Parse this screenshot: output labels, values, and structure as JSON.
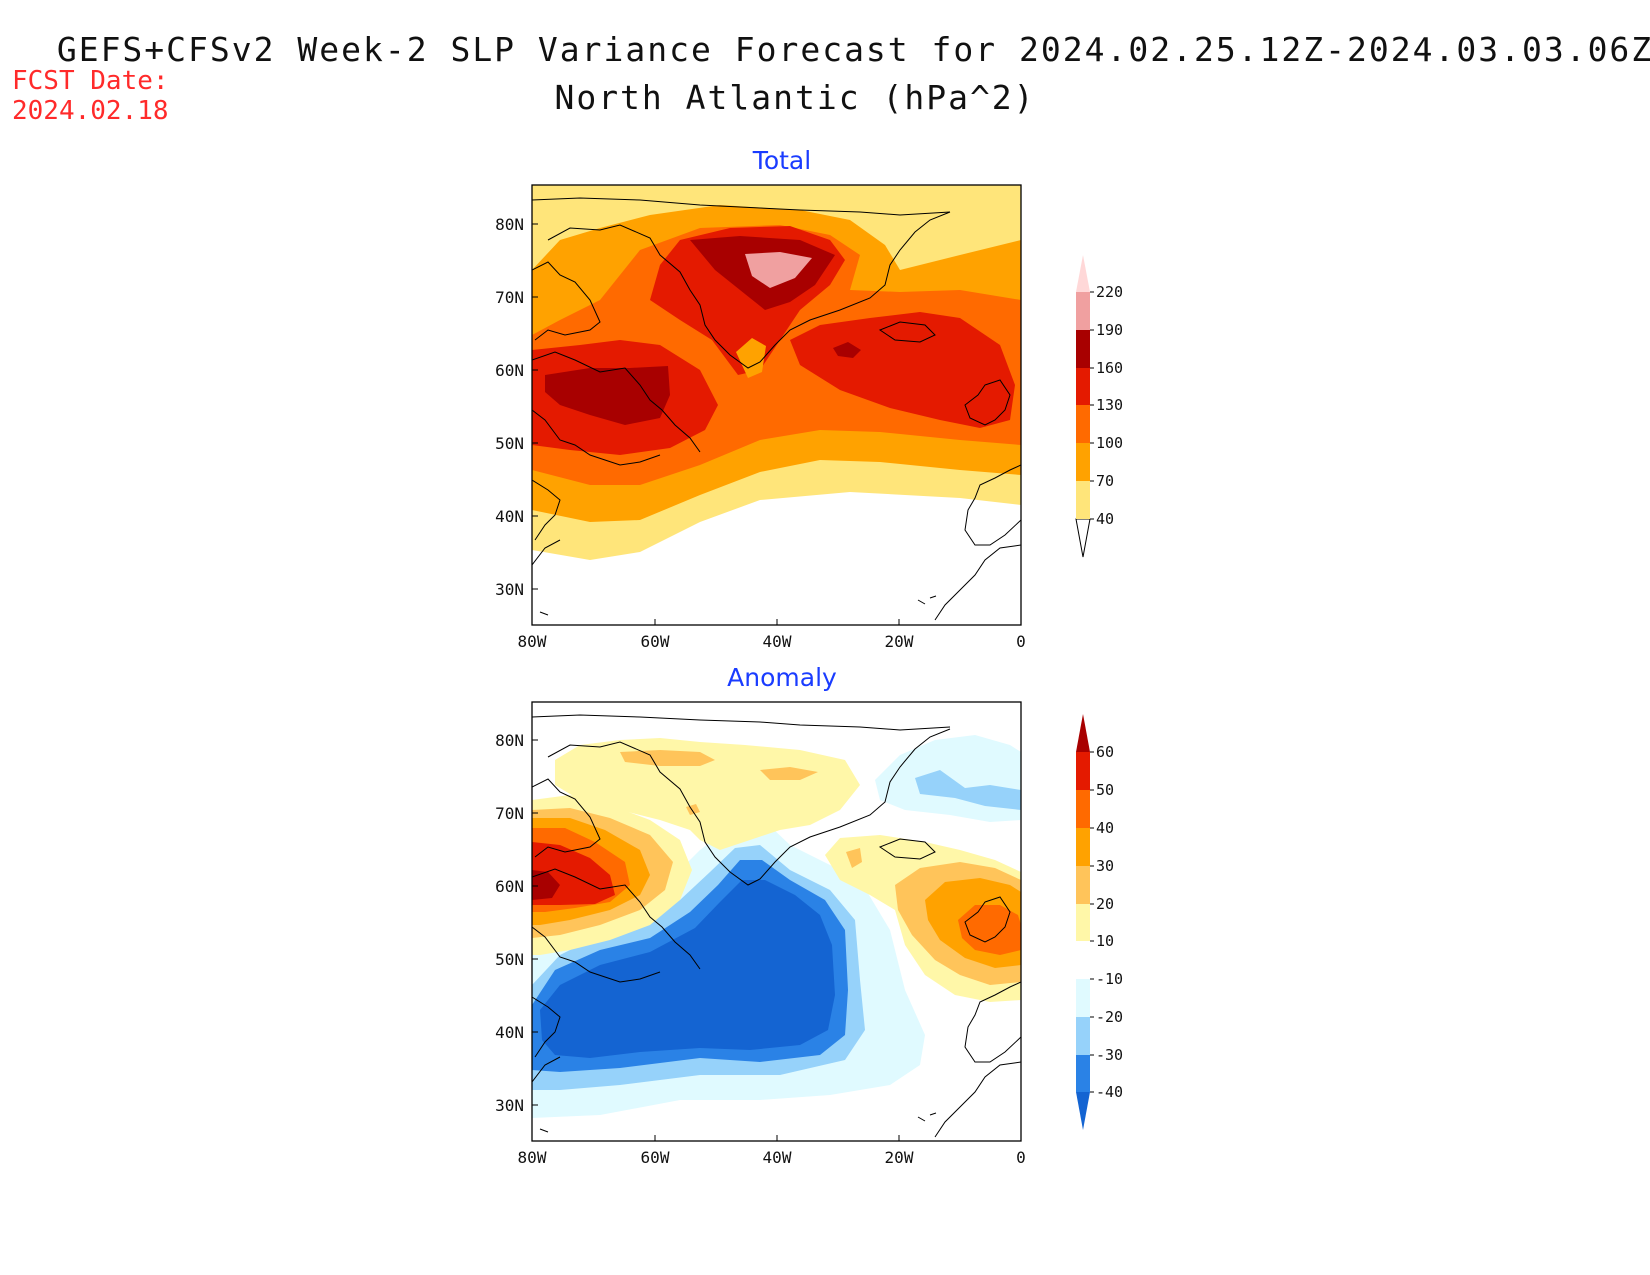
{
  "header": {
    "title_line1": "GEFS+CFSv2 Week-2 SLP Variance Forecast for 2024.02.25.12Z-2024.03.03.06Z",
    "title_line2": "North Atlantic (hPa^2)",
    "fcst_label": "FCST Date:",
    "fcst_date": "2024.02.18"
  },
  "panels": [
    {
      "title": "Total",
      "lat_labels": [
        "80N",
        "70N",
        "60N",
        "50N",
        "40N",
        "30N"
      ],
      "lon_labels": [
        "80W",
        "60W",
        "40W",
        "20W",
        "0"
      ],
      "colorbar": {
        "levels": [
          "40",
          "70",
          "100",
          "130",
          "160",
          "190",
          "220"
        ],
        "colors": [
          "#ffe57a",
          "#ffa200",
          "#ff6a00",
          "#e41a00",
          "#a80000",
          "#f0a0a0",
          "#ffd8d8"
        ]
      }
    },
    {
      "title": "Anomaly",
      "lat_labels": [
        "80N",
        "70N",
        "60N",
        "50N",
        "40N",
        "30N"
      ],
      "lon_labels": [
        "80W",
        "60W",
        "40W",
        "20W",
        "0"
      ],
      "colorbar": {
        "levels": [
          "60",
          "50",
          "40",
          "30",
          "20",
          "10",
          "-10",
          "-20",
          "-30",
          "-40"
        ],
        "colors": [
          "#a80000",
          "#e41a00",
          "#ff6a00",
          "#ffa200",
          "#ffc45a",
          "#fff7a8",
          "#ffffff",
          "#e0faff",
          "#96d2fa",
          "#2a82e6",
          "#1464d2"
        ]
      }
    }
  ]
}
